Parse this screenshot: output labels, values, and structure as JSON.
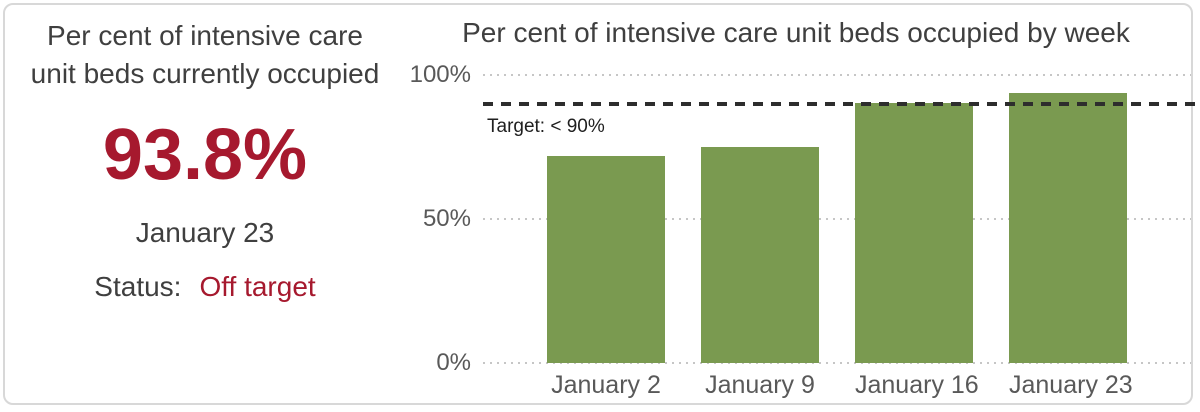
{
  "kpi": {
    "title": "Per cent of intensive care unit beds currently occupied",
    "value": "93.8%",
    "date": "January 23",
    "status_label": "Status:",
    "status_value": "Off target",
    "value_color": "#a6192e",
    "status_color": "#a6192e"
  },
  "chart_data": {
    "type": "bar",
    "title": "Per cent of intensive care unit beds occupied by week",
    "categories": [
      "January 2",
      "January 9",
      "January 16",
      "January 23"
    ],
    "values": [
      72,
      75,
      90.4,
      93.8
    ],
    "unit": "%",
    "xlabel": "",
    "ylabel": "",
    "ylim": [
      0,
      100
    ],
    "yticks": [
      {
        "value": 0,
        "label": "0%"
      },
      {
        "value": 50,
        "label": "50%"
      },
      {
        "value": 100,
        "label": "100%"
      }
    ],
    "target": {
      "value": 90,
      "label": "Target: < 90%"
    },
    "bar_color": "#7a9a50",
    "grid": "horizontal dotted",
    "gridline_color": "#c6c6c6",
    "target_line_color": "#2d2d2d",
    "legend": "none"
  }
}
